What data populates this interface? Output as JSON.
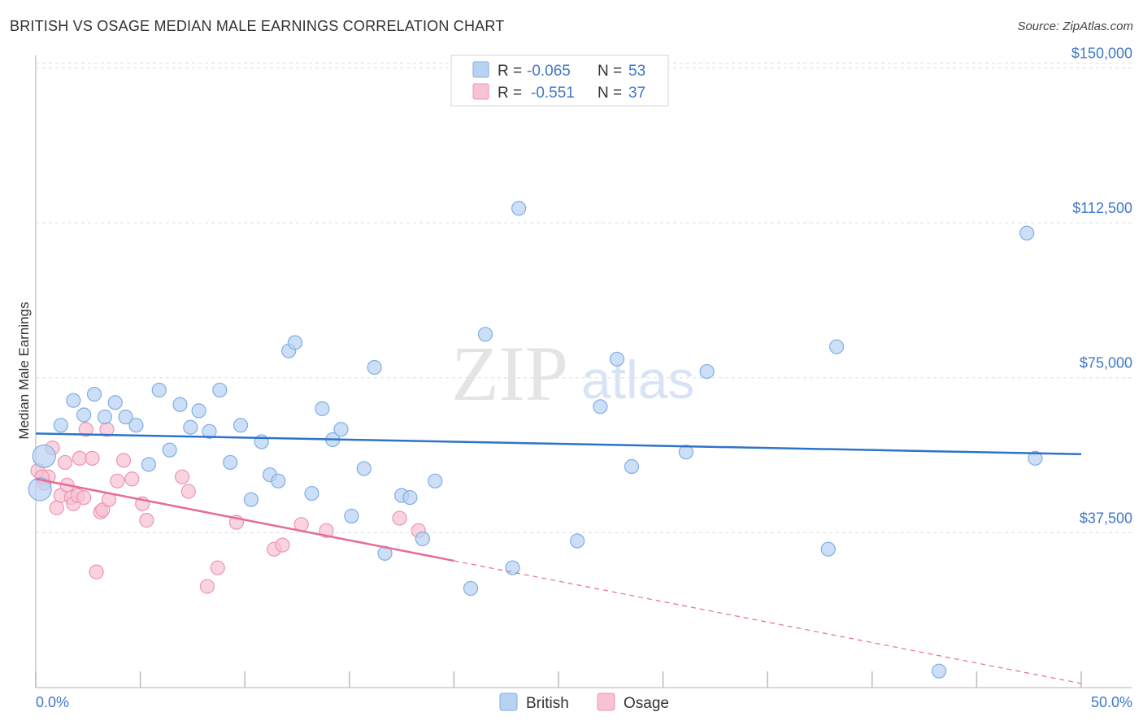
{
  "title": "BRITISH VS OSAGE MEDIAN MALE EARNINGS CORRELATION CHART",
  "source": "Source: ZipAtlas.com",
  "watermark": {
    "zip": "ZIP",
    "atlas": "atlas"
  },
  "colors": {
    "british_fill": "#b8d2f2",
    "british_stroke": "#7eaee6",
    "british_line": "#2d74c8",
    "osage_fill": "#f7c2d3",
    "osage_stroke": "#ee94b4",
    "osage_line": "#e56c98",
    "tick_text": "#3f78c6",
    "grid": "#dddddd"
  },
  "legend": {
    "rows": [
      {
        "r_label": "R =",
        "r_value": "-0.065",
        "n_label": "N =",
        "n_value": "53"
      },
      {
        "r_label": "R =",
        "r_value": "-0.551",
        "n_label": "N =",
        "n_value": "37"
      }
    ]
  },
  "chart_data": {
    "type": "scatter",
    "title": "BRITISH VS OSAGE MEDIAN MALE EARNINGS CORRELATION CHART",
    "xlabel": "",
    "ylabel": "Median Male Earnings",
    "xlim": [
      0,
      50
    ],
    "ylim": [
      0,
      155000
    ],
    "x_tick_labels": [
      "0.0%",
      "50.0%"
    ],
    "y_ticks": [
      {
        "value": 37500,
        "label": "$37,500"
      },
      {
        "value": 75000,
        "label": "$75,000"
      },
      {
        "value": 112500,
        "label": "$112,500"
      },
      {
        "value": 150000,
        "label": "$150,000"
      }
    ],
    "series": [
      {
        "name": "British",
        "r": -0.065,
        "n": 53,
        "trend": {
          "x0": 0,
          "y0": 61500,
          "x1": 50,
          "y1": 56500
        },
        "points": [
          [
            0.2,
            48000
          ],
          [
            0.4,
            56000
          ],
          [
            1.2,
            63500
          ],
          [
            1.8,
            69500
          ],
          [
            2.3,
            66000
          ],
          [
            2.8,
            71000
          ],
          [
            3.3,
            65500
          ],
          [
            3.8,
            69000
          ],
          [
            4.3,
            65500
          ],
          [
            4.8,
            63500
          ],
          [
            5.4,
            54000
          ],
          [
            5.9,
            72000
          ],
          [
            6.4,
            57500
          ],
          [
            6.9,
            68500
          ],
          [
            7.4,
            63000
          ],
          [
            7.8,
            67000
          ],
          [
            8.3,
            62000
          ],
          [
            8.8,
            72000
          ],
          [
            9.3,
            54500
          ],
          [
            9.8,
            63500
          ],
          [
            10.3,
            45500
          ],
          [
            10.8,
            59500
          ],
          [
            11.2,
            51500
          ],
          [
            11.6,
            50000
          ],
          [
            12.1,
            81500
          ],
          [
            12.4,
            83500
          ],
          [
            13.2,
            47000
          ],
          [
            13.7,
            67500
          ],
          [
            14.2,
            60000
          ],
          [
            14.6,
            62500
          ],
          [
            15.1,
            41500
          ],
          [
            15.7,
            53000
          ],
          [
            16.2,
            77500
          ],
          [
            16.7,
            32500
          ],
          [
            17.5,
            46500
          ],
          [
            17.9,
            46000
          ],
          [
            18.5,
            36000
          ],
          [
            19.1,
            50000
          ],
          [
            20.8,
            24000
          ],
          [
            21.5,
            85500
          ],
          [
            22.8,
            29000
          ],
          [
            23.1,
            116000
          ],
          [
            25.9,
            35500
          ],
          [
            27.0,
            68000
          ],
          [
            27.8,
            79500
          ],
          [
            28.5,
            53500
          ],
          [
            31.1,
            57000
          ],
          [
            32.1,
            76500
          ],
          [
            37.9,
            33500
          ],
          [
            38.3,
            82500
          ],
          [
            43.2,
            4000
          ],
          [
            47.4,
            110000
          ],
          [
            47.8,
            55500
          ]
        ],
        "point_sizes": {
          "0": "large",
          "1": "large"
        }
      },
      {
        "name": "Osage",
        "r": -0.551,
        "n": 37,
        "trend": {
          "x0": 0,
          "y0": 50500,
          "x1": 50,
          "y1": 1000,
          "solid_until_x": 20
        },
        "points": [
          [
            0.1,
            52500
          ],
          [
            0.4,
            49500
          ],
          [
            0.6,
            51000
          ],
          [
            0.8,
            58000
          ],
          [
            1.0,
            43500
          ],
          [
            1.2,
            46500
          ],
          [
            1.4,
            54500
          ],
          [
            1.5,
            49000
          ],
          [
            1.7,
            46000
          ],
          [
            1.8,
            44500
          ],
          [
            2.0,
            46500
          ],
          [
            2.1,
            55500
          ],
          [
            2.3,
            46000
          ],
          [
            2.4,
            62500
          ],
          [
            2.7,
            55500
          ],
          [
            2.9,
            28000
          ],
          [
            3.1,
            42500
          ],
          [
            3.2,
            43000
          ],
          [
            3.4,
            62500
          ],
          [
            3.5,
            45500
          ],
          [
            3.9,
            50000
          ],
          [
            4.2,
            55000
          ],
          [
            4.6,
            50500
          ],
          [
            5.1,
            44500
          ],
          [
            5.3,
            40500
          ],
          [
            7.0,
            51000
          ],
          [
            7.3,
            47500
          ],
          [
            8.2,
            24500
          ],
          [
            8.7,
            29000
          ],
          [
            9.6,
            40000
          ],
          [
            11.4,
            33500
          ],
          [
            11.8,
            34500
          ],
          [
            12.7,
            39500
          ],
          [
            13.9,
            38000
          ],
          [
            17.4,
            41000
          ],
          [
            18.3,
            38000
          ],
          [
            0.3,
            51000
          ]
        ]
      }
    ]
  },
  "bottom_legend": {
    "british": "British",
    "osage": "Osage"
  }
}
